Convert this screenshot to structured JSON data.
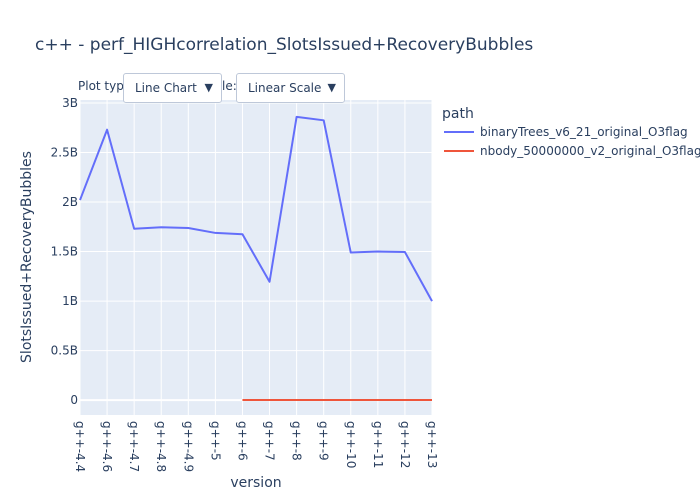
{
  "controls": {
    "plot_type_label": "Plot type",
    "plot_type_value": "Line Chart",
    "scale_label_fragment": "le:",
    "scale_value": "Linear Scale",
    "dropdown_arrow": "▼"
  },
  "chart_data": {
    "type": "line",
    "title": "c++ - perf_HIGHcorrelation_SlotsIssued+RecoveryBubbles",
    "xlabel": "version",
    "ylabel": "SlotsIssued+RecoveryBubbles",
    "legend_title": "path",
    "legend_position": "right",
    "grid": true,
    "ylim": [
      -150000000,
      3030000000
    ],
    "yticks": [
      0,
      500000000,
      1000000000,
      1500000000,
      2000000000,
      2500000000,
      3000000000
    ],
    "ytick_labels": [
      "0",
      "0.5B",
      "1B",
      "1.5B",
      "2B",
      "2.5B",
      "3B"
    ],
    "categories": [
      "g++-4.4",
      "g++-4.6",
      "g++-4.7",
      "g++-4.8",
      "g++-4.9",
      "g++-5",
      "g++-6",
      "g++-7",
      "g++-8",
      "g++-9",
      "g++-10",
      "g++-11",
      "g++-12",
      "g++-13"
    ],
    "series": [
      {
        "name": "binaryTrees_v6_21_original_O3flag",
        "color": "#636efa",
        "values": [
          2020000000,
          2730000000,
          1730000000,
          1745000000,
          1738000000,
          1688000000,
          1675000000,
          1195000000,
          2860000000,
          2825000000,
          1490000000,
          1500000000,
          1495000000,
          1000000000
        ]
      },
      {
        "name": "nbody_50000000_v2_original_O3flag",
        "color": "#ef553b",
        "values": [
          null,
          null,
          null,
          null,
          null,
          null,
          2000000,
          2000000,
          2000000,
          2000000,
          2000000,
          2000000,
          2000000,
          2000000
        ]
      }
    ]
  }
}
